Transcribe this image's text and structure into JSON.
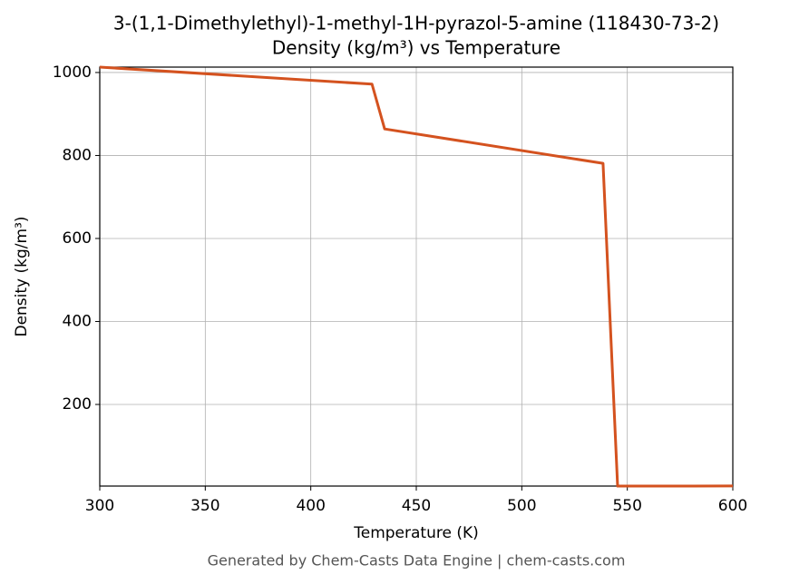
{
  "chart_data": {
    "type": "line",
    "title": "3-(1,1-Dimethylethyl)-1-methyl-1H-pyrazol-5-amine (118430-73-2)",
    "subtitle": "Density (kg/m³) vs Temperature",
    "x_label": "Temperature (K)",
    "y_label": "Density (kg/m³)",
    "caption": "Generated by Chem-Casts Data Engine | chem-casts.com",
    "x": [
      300,
      429,
      435,
      538.5,
      545.4,
      600
    ],
    "series": [
      {
        "name": "Density",
        "color": "#d4521f",
        "values": [
          1013,
          972,
          864,
          781,
          3.3,
          3.5
        ]
      }
    ],
    "xlim": [
      300,
      600
    ],
    "xticks": [
      300,
      350,
      400,
      450,
      500,
      550,
      600
    ],
    "ylim": [
      3.3,
      1013
    ],
    "yticks": [
      200,
      400,
      600,
      800,
      1000
    ],
    "grid": true
  }
}
